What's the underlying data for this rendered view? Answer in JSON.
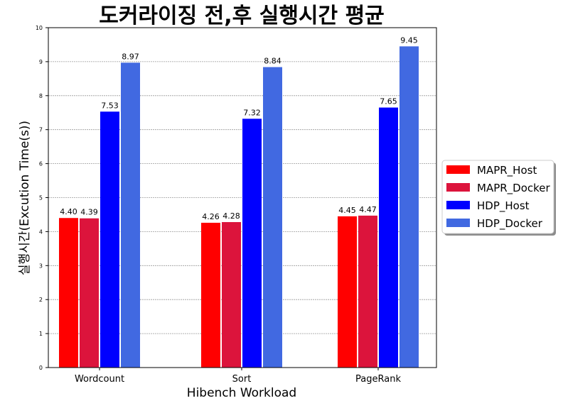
{
  "chart_data": {
    "type": "bar",
    "title": "도커라이징 전,후 실행시간 평균",
    "xlabel": "Hibench Workload",
    "ylabel": "실행시간(Excution Time(s))",
    "categories": [
      "Wordcount",
      "Sort",
      "PageRank"
    ],
    "series": [
      {
        "name": "MAPR_Host",
        "color": "#ff0000",
        "values": [
          4.4,
          4.26,
          4.45
        ]
      },
      {
        "name": "MAPR_Docker",
        "color": "#dc143c",
        "values": [
          4.39,
          4.28,
          4.47
        ]
      },
      {
        "name": "HDP_Host",
        "color": "#0000ff",
        "values": [
          7.53,
          7.32,
          7.65
        ]
      },
      {
        "name": "HDP_Docker",
        "color": "#4169e1",
        "values": [
          8.97,
          8.84,
          9.45
        ]
      }
    ],
    "ylim": [
      0,
      10
    ],
    "yticks": [
      0,
      1,
      2,
      3,
      4,
      5,
      6,
      7,
      8,
      9,
      10
    ],
    "grid": "horizontal-dashed",
    "legend_position": "right"
  }
}
